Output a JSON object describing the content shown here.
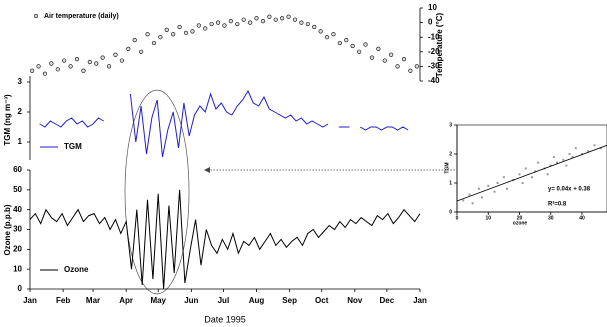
{
  "chart_data": [
    {
      "type": "scatter",
      "y_label": "Temperature (°C)",
      "xlim": [
        1,
        366
      ],
      "ylim": [
        -40,
        10
      ],
      "yticks": [
        -40,
        -30,
        -20,
        -10,
        0,
        10
      ],
      "series": [
        {
          "name": "Air temperature (daily)",
          "color": "#000000",
          "x": [
            3,
            9,
            15,
            21,
            27,
            33,
            39,
            45,
            51,
            57,
            63,
            69,
            75,
            81,
            87,
            93,
            99,
            105,
            111,
            117,
            123,
            129,
            135,
            141,
            147,
            153,
            159,
            165,
            171,
            177,
            183,
            189,
            195,
            201,
            207,
            213,
            219,
            225,
            231,
            237,
            243,
            249,
            255,
            261,
            267,
            273,
            279,
            285,
            291,
            297,
            303,
            309,
            315,
            321,
            327,
            333,
            339,
            345,
            351,
            357,
            363
          ],
          "values": [
            -33,
            -30,
            -35,
            -28,
            -32,
            -26,
            -30,
            -25,
            -33,
            -27,
            -28,
            -24,
            -30,
            -22,
            -26,
            -18,
            -12,
            -20,
            -8,
            -14,
            -10,
            -5,
            -8,
            -3,
            -7,
            -6,
            -2,
            -4,
            -1,
            0,
            -2,
            1,
            -1,
            2,
            0,
            3,
            1,
            4,
            2,
            3,
            4,
            2,
            0,
            -1,
            -3,
            -6,
            -10,
            -8,
            -14,
            -12,
            -16,
            -20,
            -15,
            -24,
            -18,
            -26,
            -22,
            -30,
            -25,
            -33,
            -30
          ]
        }
      ]
    },
    {
      "type": "line",
      "y_label": "TGM (ng m⁻³)",
      "xlim": [
        1,
        366
      ],
      "ylim": [
        0.4,
        3.2
      ],
      "yticks": [
        1,
        2,
        3
      ],
      "series": [
        {
          "name": "TGM",
          "color": "#1f1fd0",
          "x": [
            10,
            15,
            20,
            25,
            30,
            35,
            40,
            45,
            50,
            55,
            60,
            65,
            70,
            75,
            80,
            85,
            90,
            95,
            100,
            105,
            110,
            115,
            120,
            125,
            130,
            135,
            140,
            145,
            150,
            155,
            160,
            165,
            170,
            175,
            180,
            185,
            190,
            195,
            200,
            205,
            210,
            215,
            220,
            225,
            230,
            235,
            240,
            245,
            250,
            255,
            260,
            265,
            270,
            275,
            280,
            285,
            290,
            295,
            300,
            305,
            310,
            315,
            320,
            325,
            330,
            335,
            340,
            345,
            350,
            355
          ],
          "values": [
            1.6,
            1.5,
            1.7,
            1.6,
            1.5,
            1.7,
            1.8,
            1.6,
            1.7,
            1.5,
            1.6,
            1.8,
            1.7,
            null,
            null,
            null,
            null,
            2.6,
            1.0,
            2.2,
            0.6,
            1.8,
            2.4,
            0.5,
            1.4,
            2.0,
            0.8,
            2.3,
            1.2,
            1.9,
            2.2,
            2.0,
            2.6,
            2.1,
            2.3,
            2.0,
            1.9,
            2.2,
            2.4,
            2.7,
            2.3,
            2.2,
            2.5,
            2.1,
            2.0,
            1.9,
            1.8,
            1.9,
            1.7,
            1.8,
            1.6,
            1.7,
            1.6,
            1.5,
            1.6,
            null,
            1.5,
            1.5,
            1.5,
            null,
            1.5,
            1.4,
            1.5,
            1.5,
            1.4,
            1.5,
            1.5,
            1.4,
            1.5,
            1.4
          ]
        }
      ]
    },
    {
      "type": "line",
      "y_label": "Ozone (p.p.b)",
      "x_label": "Date 1995",
      "xlim": [
        1,
        366
      ],
      "ylim": [
        0,
        60
      ],
      "yticks": [
        0,
        10,
        20,
        30,
        40,
        50,
        60
      ],
      "xticks": [
        {
          "value": 1,
          "label": "Jan"
        },
        {
          "value": 32,
          "label": "Feb"
        },
        {
          "value": 60,
          "label": "Mar"
        },
        {
          "value": 91,
          "label": "Apr"
        },
        {
          "value": 121,
          "label": "May"
        },
        {
          "value": 152,
          "label": "Jun"
        },
        {
          "value": 182,
          "label": "Jul"
        },
        {
          "value": 213,
          "label": "Aug"
        },
        {
          "value": 244,
          "label": "Sep"
        },
        {
          "value": 274,
          "label": "Oct"
        },
        {
          "value": 305,
          "label": "Nov"
        },
        {
          "value": 335,
          "label": "Dec"
        },
        {
          "value": 366,
          "label": "Jan"
        }
      ],
      "series": [
        {
          "name": "Ozone",
          "color": "#000000",
          "x": [
            1,
            6,
            11,
            16,
            21,
            26,
            31,
            36,
            41,
            46,
            51,
            56,
            61,
            66,
            71,
            76,
            81,
            86,
            91,
            96,
            101,
            106,
            111,
            116,
            121,
            126,
            131,
            136,
            141,
            146,
            151,
            156,
            161,
            166,
            171,
            176,
            181,
            186,
            191,
            196,
            201,
            206,
            211,
            216,
            221,
            226,
            231,
            236,
            241,
            246,
            251,
            256,
            261,
            266,
            271,
            276,
            281,
            286,
            291,
            296,
            301,
            306,
            311,
            316,
            321,
            326,
            331,
            336,
            341,
            346,
            351,
            356,
            361,
            366
          ],
          "values": [
            35,
            38,
            33,
            40,
            36,
            34,
            38,
            32,
            36,
            40,
            34,
            37,
            38,
            33,
            36,
            30,
            35,
            28,
            34,
            10,
            40,
            2,
            45,
            5,
            48,
            0,
            42,
            8,
            50,
            3,
            20,
            35,
            12,
            30,
            22,
            18,
            25,
            20,
            28,
            18,
            24,
            22,
            26,
            20,
            24,
            28,
            22,
            25,
            21,
            24,
            26,
            22,
            28,
            30,
            26,
            29,
            32,
            30,
            34,
            31,
            35,
            33,
            36,
            34,
            32,
            37,
            35,
            38,
            33,
            36,
            40,
            37,
            34,
            38
          ]
        }
      ]
    },
    {
      "type": "scatter",
      "x_label": "ozone",
      "y_label": "TGM",
      "xlim": [
        0,
        48
      ],
      "ylim": [
        0,
        3
      ],
      "xticks": [
        0,
        10,
        20,
        30,
        40
      ],
      "yticks": [
        0,
        1,
        2,
        3
      ],
      "trendline": {
        "slope": 0.04,
        "intercept": 0.38,
        "label": "y= 0.04x + 0.38"
      },
      "annotation": "R²=0.8",
      "series": [
        {
          "color": "#999999",
          "x": [
            2,
            4,
            5,
            7,
            8,
            10,
            12,
            13,
            15,
            16,
            18,
            20,
            21,
            22,
            24,
            25,
            26,
            28,
            29,
            30,
            31,
            32,
            34,
            35,
            36,
            37,
            38,
            40,
            42,
            44,
            46
          ],
          "values": [
            0.4,
            0.6,
            0.3,
            0.8,
            0.5,
            0.9,
            0.7,
            1.0,
            1.2,
            0.8,
            1.1,
            1.3,
            1.0,
            1.5,
            1.2,
            1.4,
            1.7,
            1.5,
            1.3,
            1.6,
            1.9,
            1.7,
            1.8,
            1.6,
            2.0,
            1.9,
            2.2,
            2.0,
            2.1,
            2.3,
            2.2
          ]
        }
      ]
    }
  ]
}
